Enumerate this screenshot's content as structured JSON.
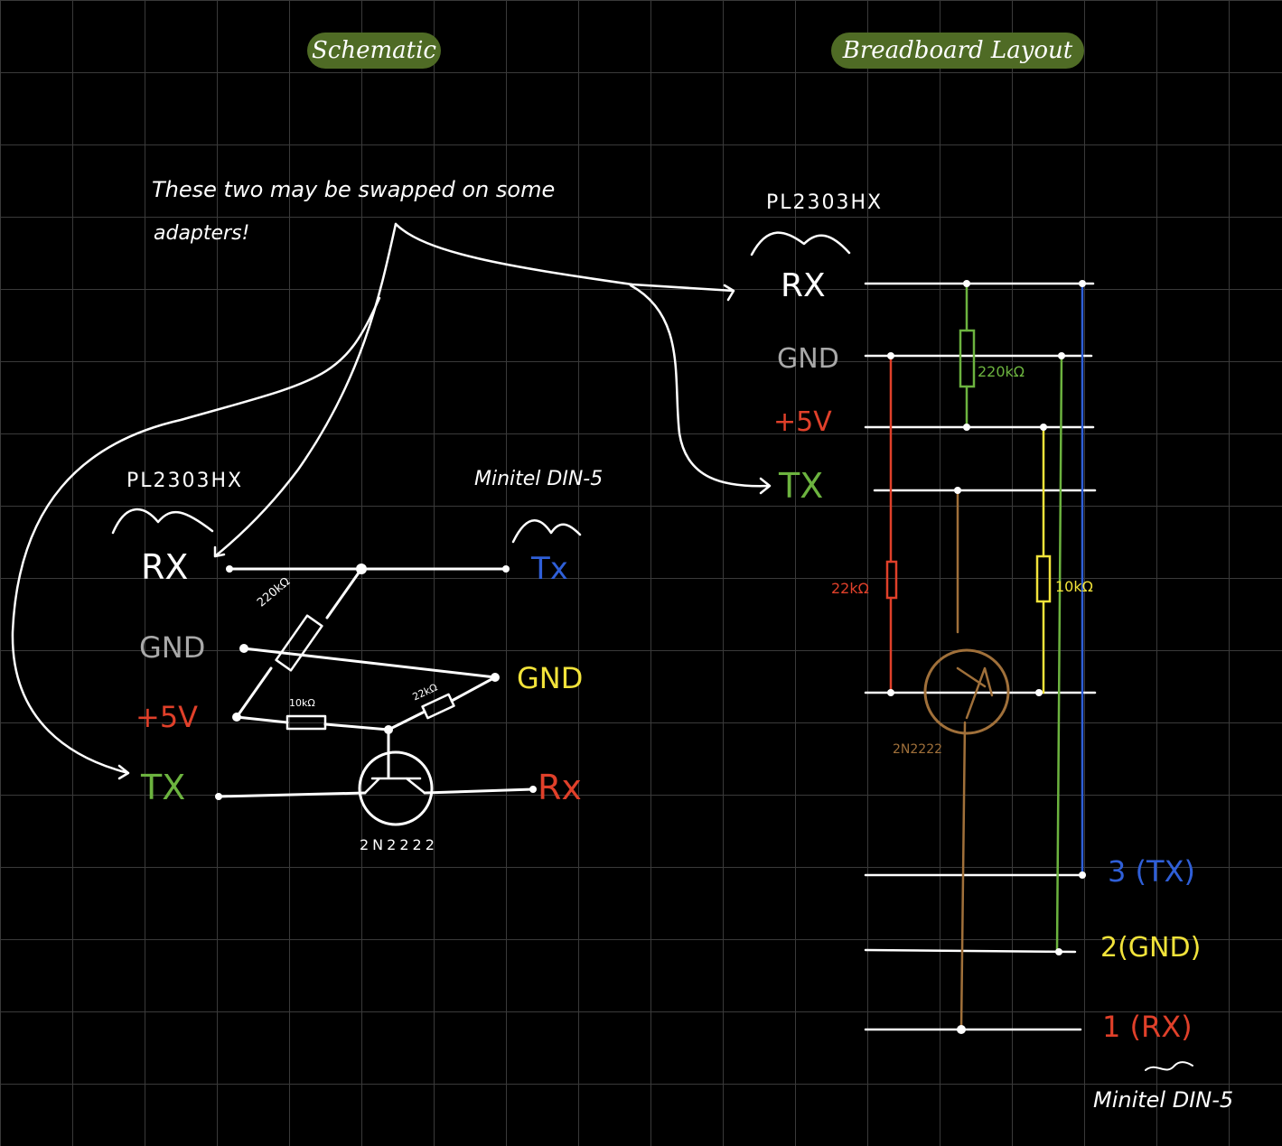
{
  "headers": {
    "schematic": "Schematic",
    "breadboard": "Breadboard Layout"
  },
  "note": {
    "line1": "These two may be swapped on some",
    "line2": "adapters!"
  },
  "schematic": {
    "adapter_name": "PL2303HX",
    "pins": {
      "rx": "RX",
      "gnd": "GND",
      "v5": "+5V",
      "tx": "TX"
    },
    "minitel_name": "Minitel DIN-5",
    "minitel_pins": {
      "tx": "Tx",
      "gnd": "GND",
      "rx": "Rx"
    },
    "r220": "220kΩ",
    "r10": "10kΩ",
    "r22": "22kΩ",
    "transistor": "2N2222"
  },
  "breadboard": {
    "adapter_name": "PL2303HX",
    "pins": {
      "rx": "RX",
      "gnd": "GND",
      "v5": "+5V",
      "tx": "TX"
    },
    "r220": "220kΩ",
    "r22": "22kΩ",
    "r10": "10kΩ",
    "transistor": "2N2222",
    "din": {
      "p3": "3 (TX)",
      "p2": "2(GND)",
      "p1": "1 (RX)"
    },
    "minitel_name": "Minitel DIN-5"
  },
  "colors": {
    "white": "#ffffff",
    "grey": "#a8a8a8",
    "red": "#e0402a",
    "green": "#6cb33f",
    "blue": "#2f5fd8",
    "yellow": "#f2e33a",
    "brown": "#a0703a",
    "pill": "#4f6b25"
  }
}
